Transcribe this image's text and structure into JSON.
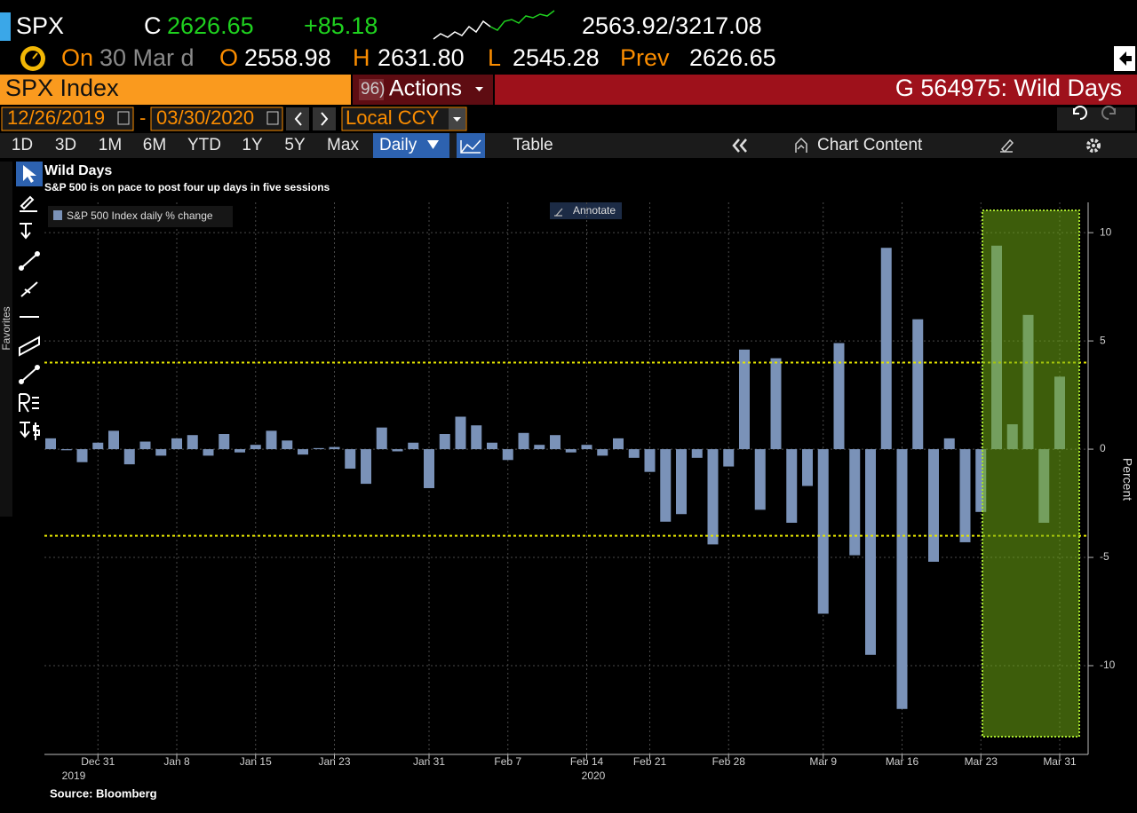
{
  "header": {
    "ticker": "SPX",
    "close_label": "C",
    "close": "2626.65",
    "change": "+85.18",
    "range": "2563.92/3217.08",
    "on": "On",
    "date": "30 Mar d",
    "open_label": "O",
    "open": "2558.98",
    "high_label": "H",
    "high": "2631.80",
    "low_label": "L",
    "low": "2545.28",
    "prev_label": "Prev",
    "prev": "2626.65"
  },
  "toolbar": {
    "security": "SPX Index",
    "actions_num": "96)",
    "actions": "Actions",
    "function": "G 564975: Wild Days",
    "start_date": "12/26/2019",
    "dash": "-",
    "end_date": "03/30/2020",
    "currency": "Local CCY",
    "periods": [
      "1D",
      "3D",
      "1M",
      "6M",
      "YTD",
      "1Y",
      "5Y",
      "Max"
    ],
    "frequency": "Daily",
    "table": "Table",
    "chart_content": "Chart Content",
    "favorites": "Favorites",
    "annotate": "Annotate"
  },
  "chart_data": {
    "type": "bar",
    "title": "Wild Days",
    "subtitle": "S&P 500 is on pace to post four up days in five sessions",
    "categories": [
      null,
      null,
      null,
      "Dec 31",
      null,
      null,
      null,
      null,
      "Jan 8",
      null,
      null,
      null,
      null,
      "Jan 15",
      null,
      null,
      null,
      null,
      "Jan 23",
      null,
      null,
      null,
      null,
      null,
      "Jan 31",
      null,
      null,
      null,
      null,
      "Feb 7",
      null,
      null,
      null,
      null,
      "Feb 14",
      null,
      null,
      null,
      "Feb 21",
      null,
      null,
      null,
      null,
      "Feb 28",
      null,
      null,
      null,
      null,
      null,
      "Mar 9",
      null,
      null,
      null,
      null,
      "Mar 16",
      null,
      null,
      null,
      null,
      "Mar 23",
      null,
      null,
      null,
      null,
      "Mar 31"
    ],
    "year_labels": [
      "2019",
      "2020"
    ],
    "series": [
      {
        "name": "S&P 500 Index daily % change",
        "color": "#7a92b8",
        "values": [
          0.5,
          -0.05,
          -0.6,
          0.3,
          0.85,
          -0.7,
          0.35,
          -0.3,
          0.5,
          0.65,
          -0.3,
          0.7,
          -0.15,
          0.2,
          0.85,
          0.4,
          -0.25,
          0.05,
          0.1,
          -0.9,
          -1.6,
          1,
          -0.1,
          0.3,
          -1.8,
          0.7,
          1.5,
          1.1,
          0.3,
          -0.5,
          0.75,
          0.2,
          0.65,
          -0.15,
          0.2,
          -0.3,
          0.5,
          -0.4,
          -1.05,
          -3.35,
          -3,
          -0.4,
          -4.4,
          -0.8,
          4.6,
          -2.8,
          4.2,
          -3.4,
          -1.7,
          -7.6,
          4.9,
          -4.9,
          -9.5,
          9.3,
          -12,
          6,
          -5.2,
          0.5,
          -4.3,
          -2.9,
          9.4,
          1.15,
          6.2,
          -3.4,
          3.35
        ]
      }
    ],
    "ylim": [
      -14.1,
      11.4
    ],
    "yticks": [
      -10,
      -5,
      0,
      5,
      10
    ],
    "y_label": "Percent",
    "grid": true,
    "reference_lines": [
      4,
      -4
    ],
    "reference_color": "#e6e600",
    "source": "Source: Bloomberg"
  }
}
